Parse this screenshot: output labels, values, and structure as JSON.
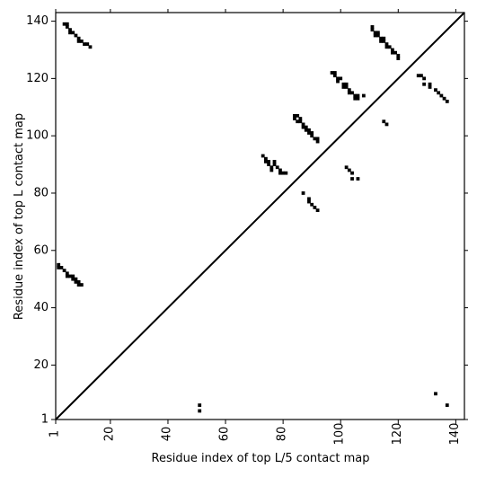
{
  "chart_data": {
    "type": "scatter",
    "xlabel": "Residue index of top L/5 contact map",
    "ylabel": "Residue index of top L contact map",
    "xlim": [
      1,
      143
    ],
    "ylim": [
      1,
      143
    ],
    "x_ticks": [
      1,
      20,
      40,
      60,
      80,
      100,
      120,
      140
    ],
    "y_ticks": [
      1,
      20,
      40,
      60,
      80,
      100,
      120,
      140
    ],
    "grid": false,
    "marker": "square",
    "marker_color": "#000000",
    "diagonal_line": {
      "from": [
        1,
        1
      ],
      "to": [
        143,
        143
      ],
      "color": "#000000"
    },
    "series": [
      {
        "points": [
          [
            4,
            139
          ],
          [
            5,
            139
          ],
          [
            5,
            138
          ],
          [
            6,
            137
          ],
          [
            6,
            136
          ],
          [
            7,
            136
          ],
          [
            8,
            135
          ],
          [
            9,
            134
          ],
          [
            9,
            133
          ],
          [
            10,
            133
          ],
          [
            11,
            132
          ],
          [
            12,
            132
          ],
          [
            13,
            131
          ],
          [
            111,
            138
          ],
          [
            111,
            137
          ],
          [
            112,
            136
          ],
          [
            112,
            135
          ],
          [
            113,
            136
          ],
          [
            113,
            135
          ],
          [
            114,
            134
          ],
          [
            114,
            133
          ],
          [
            115,
            134
          ],
          [
            115,
            133
          ],
          [
            116,
            132
          ],
          [
            116,
            131
          ],
          [
            117,
            131
          ],
          [
            118,
            130
          ],
          [
            118,
            129
          ],
          [
            119,
            129
          ],
          [
            120,
            128
          ],
          [
            120,
            127
          ],
          [
            97,
            122
          ],
          [
            98,
            122
          ],
          [
            98,
            121
          ],
          [
            99,
            120
          ],
          [
            99,
            119
          ],
          [
            100,
            120
          ],
          [
            101,
            118
          ],
          [
            101,
            117
          ],
          [
            102,
            118
          ],
          [
            102,
            117
          ],
          [
            103,
            116
          ],
          [
            103,
            115
          ],
          [
            104,
            115
          ],
          [
            105,
            114
          ],
          [
            105,
            113
          ],
          [
            106,
            114
          ],
          [
            106,
            113
          ],
          [
            108,
            114
          ],
          [
            84,
            107
          ],
          [
            84,
            106
          ],
          [
            85,
            107
          ],
          [
            85,
            105
          ],
          [
            86,
            106
          ],
          [
            86,
            105
          ],
          [
            87,
            104
          ],
          [
            87,
            103
          ],
          [
            88,
            103
          ],
          [
            88,
            102
          ],
          [
            89,
            102
          ],
          [
            89,
            101
          ],
          [
            90,
            101
          ],
          [
            90,
            100
          ],
          [
            91,
            99
          ],
          [
            92,
            99
          ],
          [
            92,
            98
          ],
          [
            73,
            93
          ],
          [
            74,
            92
          ],
          [
            74,
            91
          ],
          [
            75,
            91
          ],
          [
            75,
            90
          ],
          [
            76,
            89
          ],
          [
            76,
            88
          ],
          [
            77,
            91
          ],
          [
            77,
            90
          ],
          [
            78,
            89
          ],
          [
            79,
            88
          ],
          [
            79,
            87
          ],
          [
            80,
            87
          ],
          [
            81,
            87
          ],
          [
            127,
            121
          ],
          [
            128,
            121
          ],
          [
            129,
            120
          ],
          [
            129,
            118
          ],
          [
            131,
            118
          ],
          [
            131,
            117
          ],
          [
            133,
            116
          ],
          [
            134,
            115
          ],
          [
            135,
            114
          ],
          [
            136,
            113
          ],
          [
            137,
            112
          ],
          [
            115,
            105
          ],
          [
            116,
            104
          ],
          [
            102,
            89
          ],
          [
            103,
            88
          ],
          [
            104,
            87
          ],
          [
            104,
            85
          ],
          [
            106,
            85
          ],
          [
            87,
            80
          ],
          [
            89,
            78
          ],
          [
            89,
            77
          ],
          [
            90,
            76
          ],
          [
            91,
            75
          ],
          [
            92,
            74
          ],
          [
            2,
            55
          ],
          [
            2,
            54
          ],
          [
            3,
            54
          ],
          [
            4,
            53
          ],
          [
            5,
            52
          ],
          [
            5,
            51
          ],
          [
            6,
            51
          ],
          [
            7,
            51
          ],
          [
            7,
            50
          ],
          [
            8,
            50
          ],
          [
            8,
            49
          ],
          [
            9,
            49
          ],
          [
            9,
            48
          ],
          [
            10,
            48
          ],
          [
            51,
            6
          ],
          [
            51,
            4
          ],
          [
            133,
            10
          ],
          [
            137,
            6
          ]
        ]
      }
    ]
  }
}
